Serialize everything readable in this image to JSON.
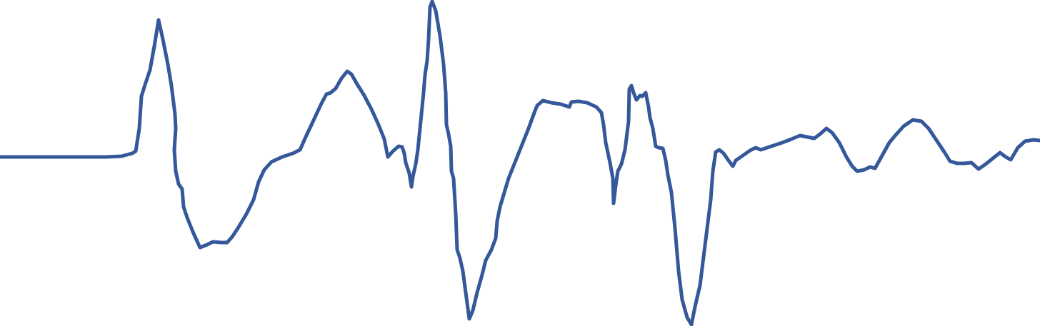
{
  "chart_data": {
    "type": "line",
    "x": [
      0,
      150,
      170,
      185,
      190,
      195,
      198,
      202,
      210,
      216,
      222,
      228,
      235,
      240,
      245,
      246,
      244,
      246,
      250,
      255,
      257,
      262,
      270,
      280,
      290,
      298,
      310,
      318,
      325,
      333,
      345,
      355,
      362,
      370,
      380,
      395,
      410,
      420,
      428,
      436,
      443,
      450,
      457,
      463,
      470,
      478,
      486,
      492,
      500,
      510,
      520,
      530,
      538,
      543,
      550,
      558,
      563,
      566,
      568,
      573,
      576,
      578,
      582,
      585,
      590,
      593,
      595,
      598,
      600,
      602,
      605,
      610,
      616,
      621,
      624,
      625,
      628,
      631,
      632,
      635,
      638,
      640,
      644,
      648,
      652,
      657,
      662,
      668,
      675,
      680,
      688,
      694,
      696,
      700,
      706,
      712,
      720,
      730,
      740,
      748,
      752,
      760,
      772,
      785,
      797,
      800,
      810,
      822,
      835,
      842,
      845,
      848,
      854,
      858,
      859,
      862,
      865,
      870,
      875,
      880,
      881,
      884,
      887,
      891,
      896,
      899,
      904,
      908,
      910,
      914,
      918,
      922,
      928,
      932,
      935,
      940,
      945,
      950,
      955,
      962,
      968,
      973,
      980,
      985,
      990,
      995,
      998,
      1002,
      1007,
      1013,
      1020,
      1026,
      1030,
      1040,
      1050,
      1058,
      1065,
      1080,
      1095,
      1108,
      1120,
      1130,
      1140,
      1148,
      1157,
      1165,
      1175,
      1185,
      1193,
      1200,
      1210,
      1218,
      1225,
      1235,
      1245,
      1255,
      1265,
      1278,
      1290,
      1300,
      1312,
      1322,
      1330,
      1340,
      1350,
      1360,
      1370,
      1380,
      1390,
      1400,
      1408,
      1415,
      1425,
      1435,
      1447,
      1456
    ],
    "series": [
      {
        "color": "#34589a",
        "values": [
          0,
          0,
          1,
          5,
          8,
          40,
          85,
          98,
          122,
          155,
          192,
          165,
          130,
          100,
          60,
          40,
          10,
          -20,
          -38,
          -45,
          -70,
          -85,
          -105,
          -127,
          -123,
          -119,
          -120,
          -120,
          -112,
          -100,
          -80,
          -60,
          -35,
          -18,
          -7,
          0,
          5,
          10,
          28,
          45,
          60,
          75,
          88,
          90,
          96,
          110,
          120,
          116,
          102,
          86,
          67,
          45,
          25,
          0,
          8,
          15,
          14,
          5,
          -8,
          -23,
          -42,
          -28,
          -10,
          10,
          60,
          90,
          115,
          135,
          165,
          210,
          218,
          205,
          170,
          130,
          90,
          45,
          32,
          15,
          -20,
          -30,
          -80,
          -130,
          -142,
          -160,
          -190,
          -227,
          -215,
          -190,
          -165,
          -145,
          -130,
          -114,
          -90,
          -70,
          -50,
          -30,
          -10,
          15,
          40,
          62,
          72,
          79,
          76,
          74,
          70,
          77,
          78,
          76,
          70,
          62,
          45,
          20,
          -8,
          -30,
          -65,
          -40,
          -20,
          -10,
          10,
          50,
          95,
          100,
          90,
          80,
          86,
          85,
          90,
          70,
          55,
          40,
          15,
          13,
          12,
          -5,
          -25,
          -50,
          -100,
          -160,
          -200,
          -225,
          -235,
          -210,
          -180,
          -140,
          -100,
          -60,
          -20,
          7,
          10,
          5,
          -5,
          -13,
          -5,
          2,
          9,
          13,
          10,
          15,
          20,
          25,
          30,
          28,
          26,
          32,
          40,
          34,
          20,
          0,
          -13,
          -20,
          -18,
          -14,
          -16,
          2,
          20,
          32,
          43,
          52,
          50,
          40,
          22,
          7,
          -6,
          -9,
          -9,
          -8,
          -17,
          -10,
          -2,
          6,
          0,
          -4,
          13,
          22,
          24,
          23
        ]
      }
    ],
    "xlim": [
      0,
      1456
    ],
    "ylim": [
      -237,
      220
    ]
  }
}
